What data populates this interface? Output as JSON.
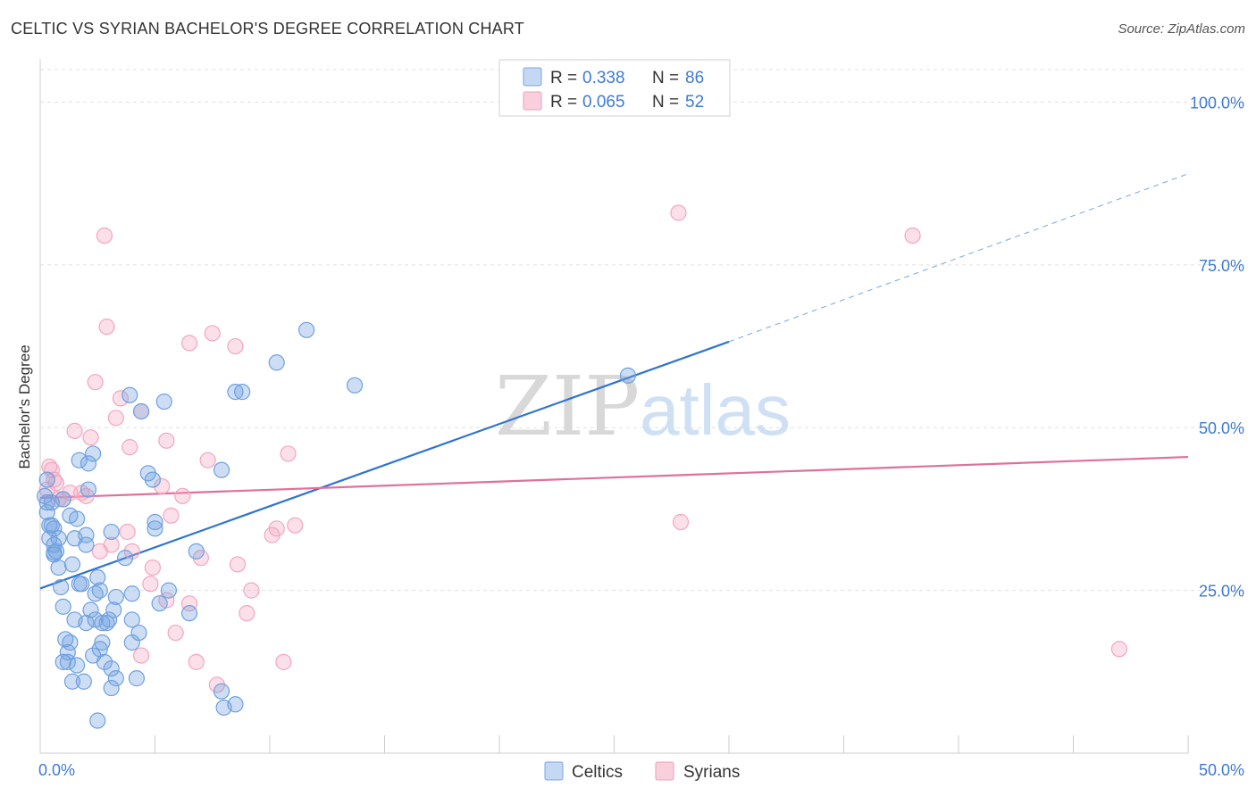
{
  "title": "CELTIC VS SYRIAN BACHELOR'S DEGREE CORRELATION CHART",
  "source": "Source: ZipAtlas.com",
  "colors": {
    "celtics": "#6fa0e0",
    "celtics_line": "#2f74d0",
    "syrians": "#f3a6bf",
    "syrians_line": "#e0709a",
    "tick_label": "#3d7ad6",
    "grid": "#e0e0e0"
  },
  "chart_data": {
    "type": "scatter",
    "title": "CELTIC VS SYRIAN BACHELOR'S DEGREE CORRELATION CHART",
    "xlabel": "",
    "ylabel": "Bachelor's Degree",
    "xlim": [
      0,
      50
    ],
    "ylim": [
      0,
      105
    ],
    "x_tick_labels": [
      "0.0%",
      "50.0%"
    ],
    "y_ticks": [
      25,
      50,
      75,
      100
    ],
    "y_tick_labels": [
      "25.0%",
      "50.0%",
      "75.0%",
      "100.0%"
    ],
    "grid": true,
    "legend": {
      "position": "top-center",
      "entries": [
        {
          "r_label": "R =",
          "r_value": "0.338",
          "n_label": "N =",
          "n_value": "86"
        },
        {
          "r_label": "R =",
          "r_value": "0.065",
          "n_label": "N =",
          "n_value": "52"
        }
      ]
    },
    "bottom_legend": [
      "Celtics",
      "Syrians"
    ],
    "watermark": "ZIPatlas",
    "series": [
      {
        "name": "Celtics",
        "trend": {
          "x0": 0,
          "y0": 25.3,
          "x1": 30,
          "y1": 63.2,
          "dash_to_x": 50,
          "dash_to_y": 89.0
        },
        "points": [
          [
            0.2,
            39.5
          ],
          [
            0.3,
            38.5
          ],
          [
            0.3,
            42.0
          ],
          [
            0.3,
            37.0
          ],
          [
            0.4,
            33.0
          ],
          [
            0.4,
            35.0
          ],
          [
            0.5,
            35.0
          ],
          [
            0.6,
            32.0
          ],
          [
            0.6,
            30.8
          ],
          [
            0.6,
            34.5
          ],
          [
            0.7,
            31.0
          ],
          [
            0.8,
            33.0
          ],
          [
            0.8,
            28.5
          ],
          [
            0.9,
            25.5
          ],
          [
            1.0,
            39.0
          ],
          [
            1.0,
            22.5
          ],
          [
            1.1,
            17.5
          ],
          [
            1.2,
            14.0
          ],
          [
            1.2,
            15.5
          ],
          [
            1.3,
            17.0
          ],
          [
            1.3,
            36.5
          ],
          [
            1.4,
            29.0
          ],
          [
            1.5,
            20.5
          ],
          [
            1.6,
            13.5
          ],
          [
            1.6,
            36.0
          ],
          [
            1.7,
            45.0
          ],
          [
            1.7,
            26.0
          ],
          [
            1.8,
            26.0
          ],
          [
            1.9,
            11.0
          ],
          [
            2.0,
            20.0
          ],
          [
            2.0,
            32.0
          ],
          [
            2.0,
            33.5
          ],
          [
            2.1,
            44.5
          ],
          [
            2.1,
            40.5
          ],
          [
            2.2,
            22.0
          ],
          [
            2.3,
            46.0
          ],
          [
            2.4,
            24.5
          ],
          [
            2.4,
            20.5
          ],
          [
            2.5,
            5.0
          ],
          [
            2.5,
            27.0
          ],
          [
            2.6,
            25.0
          ],
          [
            2.6,
            16.0
          ],
          [
            2.7,
            17.0
          ],
          [
            2.8,
            14.0
          ],
          [
            2.9,
            20.0
          ],
          [
            3.0,
            20.5
          ],
          [
            3.1,
            10.0
          ],
          [
            3.1,
            13.0
          ],
          [
            3.1,
            34.0
          ],
          [
            3.2,
            22.0
          ],
          [
            3.3,
            11.5
          ],
          [
            3.3,
            24.0
          ],
          [
            3.7,
            30.0
          ],
          [
            3.9,
            55.0
          ],
          [
            4.0,
            17.0
          ],
          [
            4.0,
            20.5
          ],
          [
            4.0,
            24.5
          ],
          [
            4.2,
            11.5
          ],
          [
            4.3,
            18.5
          ],
          [
            4.4,
            52.5
          ],
          [
            4.7,
            43.0
          ],
          [
            4.9,
            42.0
          ],
          [
            5.0,
            35.5
          ],
          [
            5.0,
            34.5
          ],
          [
            5.2,
            23.0
          ],
          [
            5.4,
            54.0
          ],
          [
            5.6,
            25.0
          ],
          [
            6.5,
            21.5
          ],
          [
            6.8,
            31.0
          ],
          [
            7.9,
            43.5
          ],
          [
            7.9,
            9.5
          ],
          [
            8.0,
            7.0
          ],
          [
            8.5,
            7.5
          ],
          [
            8.5,
            55.5
          ],
          [
            8.8,
            55.5
          ],
          [
            10.3,
            60.0
          ],
          [
            11.6,
            65.0
          ],
          [
            13.7,
            56.5
          ],
          [
            25.6,
            58.0
          ],
          [
            0.6,
            30.5
          ],
          [
            1.0,
            14.0
          ],
          [
            1.4,
            11.0
          ],
          [
            2.7,
            20.0
          ],
          [
            0.5,
            38.5
          ],
          [
            1.5,
            33.0
          ],
          [
            2.3,
            15.0
          ]
        ]
      },
      {
        "name": "Syrians",
        "trend": {
          "x0": 0,
          "y0": 39.2,
          "x1": 50,
          "y1": 45.5
        },
        "points": [
          [
            0.3,
            40.5
          ],
          [
            0.4,
            44.0
          ],
          [
            0.5,
            43.5
          ],
          [
            0.6,
            42.0
          ],
          [
            0.7,
            41.5
          ],
          [
            0.8,
            39.0
          ],
          [
            1.0,
            39.0
          ],
          [
            1.3,
            40.0
          ],
          [
            1.5,
            49.5
          ],
          [
            1.8,
            40.0
          ],
          [
            2.0,
            39.5
          ],
          [
            2.2,
            48.5
          ],
          [
            2.4,
            57.0
          ],
          [
            2.6,
            31.0
          ],
          [
            2.8,
            79.5
          ],
          [
            2.9,
            65.5
          ],
          [
            3.1,
            32.0
          ],
          [
            3.3,
            51.5
          ],
          [
            3.5,
            54.5
          ],
          [
            3.8,
            34.0
          ],
          [
            3.9,
            47.0
          ],
          [
            4.0,
            31.0
          ],
          [
            4.4,
            52.5
          ],
          [
            4.4,
            15.0
          ],
          [
            4.8,
            26.0
          ],
          [
            4.9,
            28.5
          ],
          [
            5.3,
            41.0
          ],
          [
            5.5,
            23.5
          ],
          [
            5.5,
            48.0
          ],
          [
            5.7,
            36.5
          ],
          [
            5.9,
            18.5
          ],
          [
            6.2,
            39.5
          ],
          [
            6.5,
            63.0
          ],
          [
            6.5,
            23.0
          ],
          [
            6.8,
            14.0
          ],
          [
            7.0,
            30.0
          ],
          [
            7.3,
            45.0
          ],
          [
            7.5,
            64.5
          ],
          [
            7.7,
            10.5
          ],
          [
            8.5,
            62.5
          ],
          [
            8.6,
            29.0
          ],
          [
            9.0,
            21.5
          ],
          [
            9.2,
            25.0
          ],
          [
            10.1,
            33.5
          ],
          [
            10.3,
            34.5
          ],
          [
            10.6,
            14.0
          ],
          [
            10.8,
            46.0
          ],
          [
            11.1,
            35.0
          ],
          [
            27.8,
            83.0
          ],
          [
            27.9,
            35.5
          ],
          [
            38.0,
            79.5
          ],
          [
            47.0,
            16.0
          ]
        ]
      }
    ]
  }
}
